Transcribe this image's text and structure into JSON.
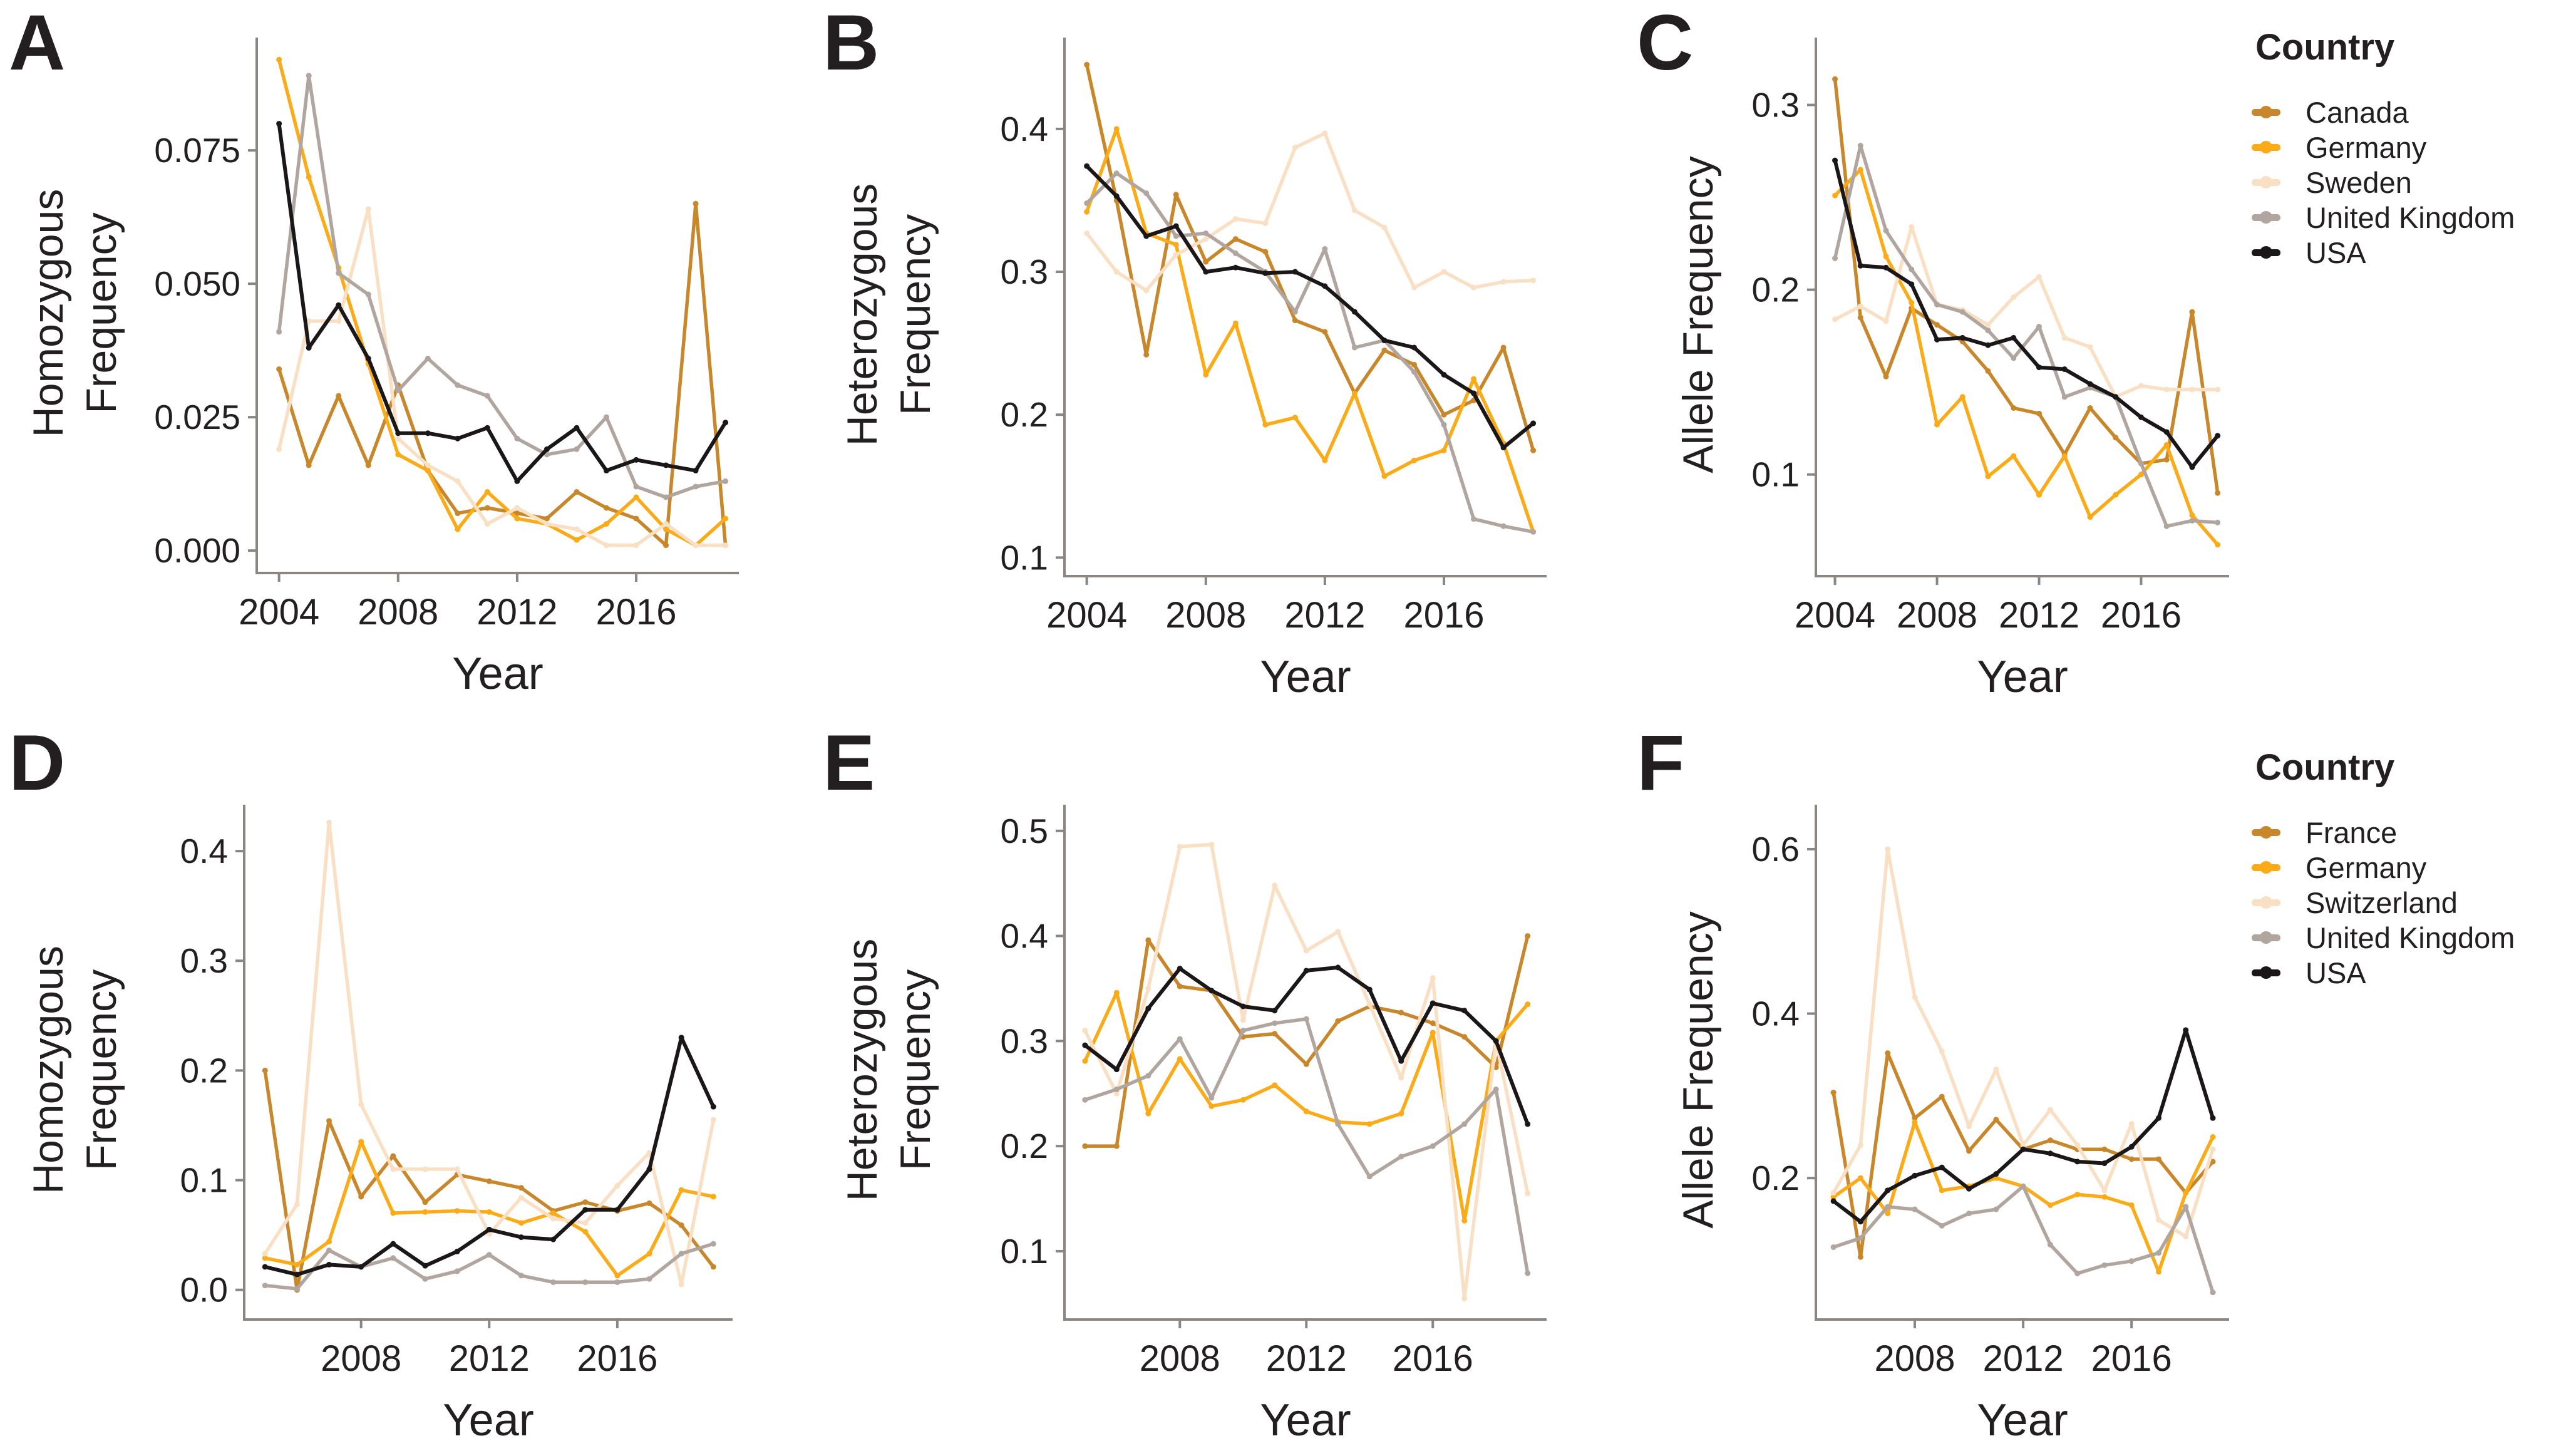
{
  "figure": {
    "background": "#FFFFFF"
  },
  "text_color": "#231F20",
  "axis_color": "#8C8683",
  "colors": {
    "Canada": "#C8872B",
    "France": "#C8872B",
    "Germany": "#FBAB18",
    "Sweden": "#F9E0C5",
    "Switzerland": "#F9E0C5",
    "United Kingdom": "#B0A69F",
    "USA": "#1B1718"
  },
  "legends": [
    {
      "title": "Country",
      "items": [
        {
          "label": "Canada",
          "country": "Canada"
        },
        {
          "label": "Germany",
          "country": "Germany"
        },
        {
          "label": "Sweden",
          "country": "Sweden"
        },
        {
          "label": "United Kingdom",
          "country": "United Kingdom"
        },
        {
          "label": "USA",
          "country": "USA"
        }
      ]
    },
    {
      "title": "Country",
      "items": [
        {
          "label": "France",
          "country": "France"
        },
        {
          "label": "Germany",
          "country": "Germany"
        },
        {
          "label": "Switzerland",
          "country": "Switzerland"
        },
        {
          "label": "United Kingdom",
          "country": "United Kingdom"
        },
        {
          "label": "USA",
          "country": "USA"
        }
      ]
    }
  ],
  "chart_data": [
    {
      "panel_label": "A",
      "type": "line",
      "xlabel": "Year",
      "ylabel_lines": [
        "Homozygous",
        "Frequency"
      ],
      "x_ticks": [
        2004,
        2008,
        2012,
        2016
      ],
      "x_tick_labels": [
        "2004",
        "2008",
        "2012",
        "2016"
      ],
      "y_ticks": [
        0.0,
        0.025,
        0.05,
        0.075
      ],
      "y_tick_labels": [
        "0.000",
        "0.025",
        "0.050",
        "0.075"
      ],
      "xlim": [
        2003.25,
        2019.45
      ],
      "ylim": [
        -0.0042,
        0.0932
      ],
      "grid": false,
      "years": [
        2004,
        2005,
        2006,
        2007,
        2008,
        2009,
        2010,
        2011,
        2012,
        2013,
        2014,
        2015,
        2016,
        2017,
        2018,
        2019
      ],
      "series": [
        {
          "name": "Canada",
          "values": [
            0.034,
            0.016,
            0.029,
            0.016,
            0.031,
            0.015,
            0.007,
            0.008,
            0.007,
            0.006,
            0.011,
            0.008,
            0.006,
            0.001,
            0.065,
            0.001
          ]
        },
        {
          "name": "Germany",
          "values": [
            0.092,
            0.07,
            0.053,
            0.035,
            0.018,
            0.015,
            0.004,
            0.011,
            0.006,
            0.005,
            0.002,
            0.005,
            0.01,
            0.004,
            0.001,
            0.006
          ]
        },
        {
          "name": "Sweden",
          "values": [
            0.019,
            0.043,
            0.043,
            0.064,
            0.021,
            0.016,
            0.013,
            0.005,
            0.008,
            0.005,
            0.004,
            0.001,
            0.001,
            0.005,
            0.001,
            0.001
          ]
        },
        {
          "name": "United Kingdom",
          "values": [
            0.041,
            0.089,
            0.052,
            0.048,
            0.03,
            0.036,
            0.031,
            0.029,
            0.021,
            0.018,
            0.019,
            0.025,
            0.012,
            0.01,
            0.012,
            0.013
          ]
        },
        {
          "name": "USA",
          "values": [
            0.08,
            0.038,
            0.046,
            0.036,
            0.022,
            0.022,
            0.021,
            0.023,
            0.013,
            0.019,
            0.023,
            0.015,
            0.017,
            0.016,
            0.015,
            0.024
          ]
        }
      ]
    },
    {
      "panel_label": "B",
      "type": "line",
      "xlabel": "Year",
      "ylabel_lines": [
        "Heterozygous",
        "Frequency"
      ],
      "x_ticks": [
        2004,
        2008,
        2012,
        2016
      ],
      "x_tick_labels": [
        "2004",
        "2008",
        "2012",
        "2016"
      ],
      "y_ticks": [
        0.1,
        0.2,
        0.3,
        0.4
      ],
      "y_tick_labels": [
        "0.1",
        "0.2",
        "0.3",
        "0.4"
      ],
      "xlim": [
        2003.25,
        2019.45
      ],
      "ylim": [
        0.087,
        0.453
      ],
      "grid": false,
      "years": [
        2004,
        2005,
        2006,
        2007,
        2008,
        2009,
        2010,
        2011,
        2012,
        2013,
        2014,
        2015,
        2016,
        2017,
        2018,
        2019
      ],
      "series": [
        {
          "name": "Canada",
          "values": [
            0.445,
            0.35,
            0.242,
            0.354,
            0.307,
            0.323,
            0.314,
            0.266,
            0.258,
            0.215,
            0.245,
            0.235,
            0.2,
            0.21,
            0.247,
            0.175
          ]
        },
        {
          "name": "Germany",
          "values": [
            0.342,
            0.4,
            0.327,
            0.319,
            0.228,
            0.264,
            0.193,
            0.198,
            0.168,
            0.215,
            0.157,
            0.168,
            0.175,
            0.225,
            0.18,
            0.118
          ]
        },
        {
          "name": "Sweden",
          "values": [
            0.327,
            0.3,
            0.287,
            0.312,
            0.323,
            0.337,
            0.334,
            0.387,
            0.397,
            0.343,
            0.331,
            0.289,
            0.3,
            0.289,
            0.293,
            0.294
          ]
        },
        {
          "name": "United Kingdom",
          "values": [
            0.348,
            0.369,
            0.355,
            0.325,
            0.327,
            0.313,
            0.3,
            0.272,
            0.316,
            0.247,
            0.252,
            0.23,
            0.193,
            0.127,
            0.122,
            0.118
          ]
        },
        {
          "name": "USA",
          "values": [
            0.374,
            0.353,
            0.325,
            0.332,
            0.3,
            0.303,
            0.299,
            0.3,
            0.29,
            0.272,
            0.252,
            0.247,
            0.228,
            0.215,
            0.177,
            0.194
          ]
        }
      ]
    },
    {
      "panel_label": "C",
      "type": "line",
      "xlabel": "Year",
      "ylabel_lines": [
        "Allele Frequency"
      ],
      "x_ticks": [
        2004,
        2008,
        2012,
        2016
      ],
      "x_tick_labels": [
        "2004",
        "2008",
        "2012",
        "2016"
      ],
      "y_ticks": [
        0.1,
        0.2,
        0.3
      ],
      "y_tick_labels": [
        "0.1",
        "0.2",
        "0.3"
      ],
      "xlim": [
        2003.25,
        2019.45
      ],
      "ylim": [
        0.045,
        0.328
      ],
      "grid": false,
      "years": [
        2004,
        2005,
        2006,
        2007,
        2008,
        2009,
        2010,
        2011,
        2012,
        2013,
        2014,
        2015,
        2016,
        2017,
        2018,
        2019
      ],
      "series": [
        {
          "name": "Canada",
          "values": [
            0.314,
            0.185,
            0.153,
            0.19,
            0.181,
            0.172,
            0.156,
            0.136,
            0.133,
            0.111,
            0.136,
            0.12,
            0.106,
            0.108,
            0.188,
            0.09
          ]
        },
        {
          "name": "Germany",
          "values": [
            0.251,
            0.265,
            0.218,
            0.193,
            0.127,
            0.142,
            0.099,
            0.11,
            0.089,
            0.11,
            0.077,
            0.089,
            0.1,
            0.116,
            0.078,
            0.062
          ]
        },
        {
          "name": "Sweden",
          "values": [
            0.184,
            0.191,
            0.183,
            0.234,
            0.192,
            0.189,
            0.181,
            0.196,
            0.207,
            0.174,
            0.169,
            0.142,
            0.148,
            0.146,
            0.146,
            0.146
          ]
        },
        {
          "name": "United Kingdom",
          "values": [
            0.217,
            0.278,
            0.232,
            0.211,
            0.192,
            0.188,
            0.178,
            0.163,
            0.18,
            0.142,
            0.147,
            0.142,
            0.106,
            0.072,
            0.075,
            0.074
          ]
        },
        {
          "name": "USA",
          "values": [
            0.27,
            0.213,
            0.212,
            0.203,
            0.173,
            0.174,
            0.17,
            0.174,
            0.158,
            0.157,
            0.149,
            0.142,
            0.131,
            0.123,
            0.104,
            0.121
          ]
        }
      ]
    },
    {
      "panel_label": "D",
      "type": "line",
      "xlabel": "Year",
      "ylabel_lines": [
        "Homozygous",
        "Frequency"
      ],
      "x_ticks": [
        2008,
        2012,
        2016
      ],
      "x_tick_labels": [
        "2008",
        "2012",
        "2016"
      ],
      "y_ticks": [
        0.0,
        0.1,
        0.2,
        0.3,
        0.4
      ],
      "y_tick_labels": [
        "0.0",
        "0.1",
        "0.2",
        "0.3",
        "0.4"
      ],
      "xlim": [
        2004.35,
        2019.6
      ],
      "ylim": [
        -0.027,
        0.428
      ],
      "grid": false,
      "years": [
        2005,
        2006,
        2007,
        2008,
        2009,
        2010,
        2011,
        2012,
        2013,
        2014,
        2015,
        2016,
        2017,
        2018,
        2019
      ],
      "series": [
        {
          "name": "France",
          "values": [
            0.2,
            0.0,
            0.154,
            0.085,
            0.122,
            0.08,
            0.105,
            0.099,
            0.093,
            0.072,
            0.08,
            0.072,
            0.079,
            0.059,
            0.021
          ]
        },
        {
          "name": "Germany",
          "values": [
            0.029,
            0.023,
            0.044,
            0.135,
            0.07,
            0.071,
            0.072,
            0.071,
            0.061,
            0.07,
            0.053,
            0.013,
            0.033,
            0.091,
            0.085
          ]
        },
        {
          "name": "Switzerland",
          "values": [
            0.033,
            0.078,
            0.426,
            0.169,
            0.11,
            0.11,
            0.11,
            0.051,
            0.084,
            0.065,
            0.061,
            0.095,
            0.125,
            0.005,
            0.155
          ]
        },
        {
          "name": "United Kingdom",
          "values": [
            0.004,
            0.001,
            0.036,
            0.021,
            0.029,
            0.01,
            0.017,
            0.032,
            0.013,
            0.007,
            0.007,
            0.007,
            0.01,
            0.033,
            0.042
          ]
        },
        {
          "name": "USA",
          "values": [
            0.021,
            0.014,
            0.023,
            0.021,
            0.042,
            0.022,
            0.035,
            0.055,
            0.048,
            0.046,
            0.073,
            0.073,
            0.11,
            0.23,
            0.167
          ]
        }
      ]
    },
    {
      "panel_label": "E",
      "type": "line",
      "xlabel": "Year",
      "ylabel_lines": [
        "Heterozygous",
        "Frequency"
      ],
      "x_ticks": [
        2008,
        2012,
        2016
      ],
      "x_tick_labels": [
        "2008",
        "2012",
        "2016"
      ],
      "y_ticks": [
        0.1,
        0.2,
        0.3,
        0.4,
        0.5
      ],
      "y_tick_labels": [
        "0.1",
        "0.2",
        "0.3",
        "0.4",
        "0.5"
      ],
      "xlim": [
        2004.35,
        2019.6
      ],
      "ylim": [
        0.035,
        0.51
      ],
      "grid": false,
      "years": [
        2005,
        2006,
        2007,
        2008,
        2009,
        2010,
        2011,
        2012,
        2013,
        2014,
        2015,
        2016,
        2017,
        2018,
        2019
      ],
      "series": [
        {
          "name": "France",
          "values": [
            0.2,
            0.2,
            0.396,
            0.352,
            0.348,
            0.304,
            0.307,
            0.278,
            0.319,
            0.333,
            0.327,
            0.317,
            0.304,
            0.275,
            0.4
          ]
        },
        {
          "name": "Germany",
          "values": [
            0.281,
            0.346,
            0.231,
            0.283,
            0.238,
            0.244,
            0.258,
            0.233,
            0.223,
            0.221,
            0.231,
            0.308,
            0.129,
            0.3,
            0.335
          ]
        },
        {
          "name": "Switzerland",
          "values": [
            0.31,
            0.25,
            0.35,
            0.485,
            0.487,
            0.32,
            0.448,
            0.386,
            0.404,
            0.335,
            0.265,
            0.36,
            0.055,
            0.3,
            0.155
          ]
        },
        {
          "name": "United Kingdom",
          "values": [
            0.244,
            0.254,
            0.267,
            0.302,
            0.246,
            0.31,
            0.317,
            0.321,
            0.221,
            0.171,
            0.19,
            0.2,
            0.221,
            0.254,
            0.079
          ]
        },
        {
          "name": "USA",
          "values": [
            0.296,
            0.273,
            0.331,
            0.369,
            0.348,
            0.333,
            0.329,
            0.367,
            0.37,
            0.349,
            0.281,
            0.336,
            0.329,
            0.3,
            0.221
          ]
        }
      ]
    },
    {
      "panel_label": "F",
      "type": "line",
      "xlabel": "Year",
      "ylabel_lines": [
        "Allele Frequency"
      ],
      "x_ticks": [
        2008,
        2012,
        2016
      ],
      "x_tick_labels": [
        "2008",
        "2012",
        "2016"
      ],
      "y_ticks": [
        0.2,
        0.4,
        0.6
      ],
      "y_tick_labels": [
        "0.2",
        "0.4",
        "0.6"
      ],
      "xlim": [
        2004.35,
        2019.6
      ],
      "ylim": [
        0.028,
        0.635
      ],
      "grid": false,
      "years": [
        2005,
        2006,
        2007,
        2008,
        2009,
        2010,
        2011,
        2012,
        2013,
        2014,
        2015,
        2016,
        2017,
        2018,
        2019
      ],
      "series": [
        {
          "name": "France",
          "values": [
            0.304,
            0.104,
            0.352,
            0.273,
            0.299,
            0.233,
            0.271,
            0.235,
            0.246,
            0.235,
            0.235,
            0.223,
            0.223,
            0.182,
            0.22
          ]
        },
        {
          "name": "Germany",
          "values": [
            0.177,
            0.2,
            0.157,
            0.268,
            0.185,
            0.19,
            0.2,
            0.19,
            0.167,
            0.18,
            0.177,
            0.167,
            0.086,
            0.182,
            0.25
          ]
        },
        {
          "name": "Switzerland",
          "values": [
            0.182,
            0.24,
            0.6,
            0.42,
            0.354,
            0.263,
            0.332,
            0.24,
            0.283,
            0.24,
            0.185,
            0.266,
            0.149,
            0.129,
            0.235
          ]
        },
        {
          "name": "United Kingdom",
          "values": [
            0.116,
            0.127,
            0.165,
            0.162,
            0.142,
            0.157,
            0.162,
            0.19,
            0.119,
            0.084,
            0.094,
            0.099,
            0.109,
            0.165,
            0.061
          ]
        },
        {
          "name": "USA",
          "values": [
            0.172,
            0.147,
            0.185,
            0.203,
            0.213,
            0.187,
            0.205,
            0.235,
            0.23,
            0.22,
            0.218,
            0.238,
            0.273,
            0.38,
            0.273
          ]
        }
      ]
    }
  ]
}
